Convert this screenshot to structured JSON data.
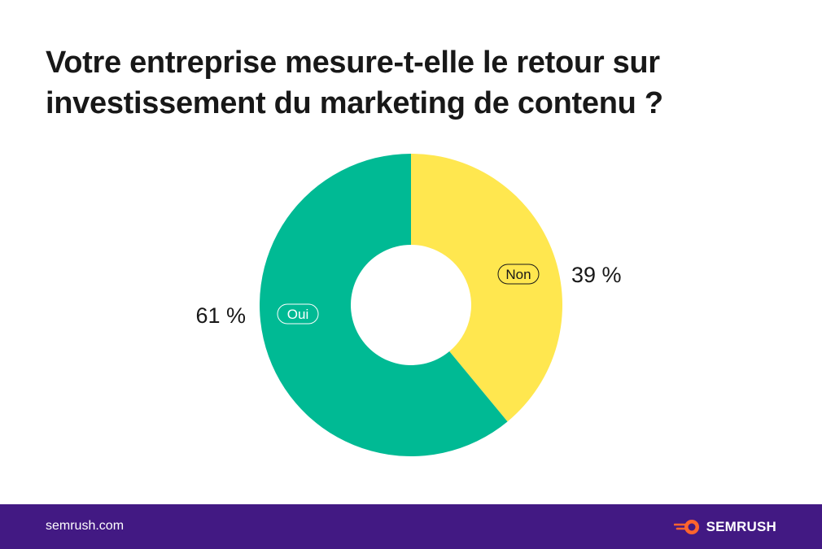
{
  "title": "Votre entreprise mesure-t-elle le retour sur investissement du marketing de contenu ?",
  "footer": {
    "url": "semrush.com",
    "brand_name": "SEMRUSH",
    "brand_icon": "semrush-comet-icon"
  },
  "colors": {
    "non": "#FFE74F",
    "oui": "#00BA94",
    "footer": "#421983",
    "brand_accent": "#FF642D"
  },
  "chart_data": {
    "type": "pie",
    "variant": "donut",
    "title": "Votre entreprise mesure-t-elle le retour sur investissement du marketing de contenu ?",
    "categories": [
      "Non",
      "Oui"
    ],
    "values": [
      39,
      61
    ],
    "value_labels": [
      "39 %",
      "61 %"
    ],
    "start": "top, clockwise",
    "legend": "inline labels on slices"
  }
}
